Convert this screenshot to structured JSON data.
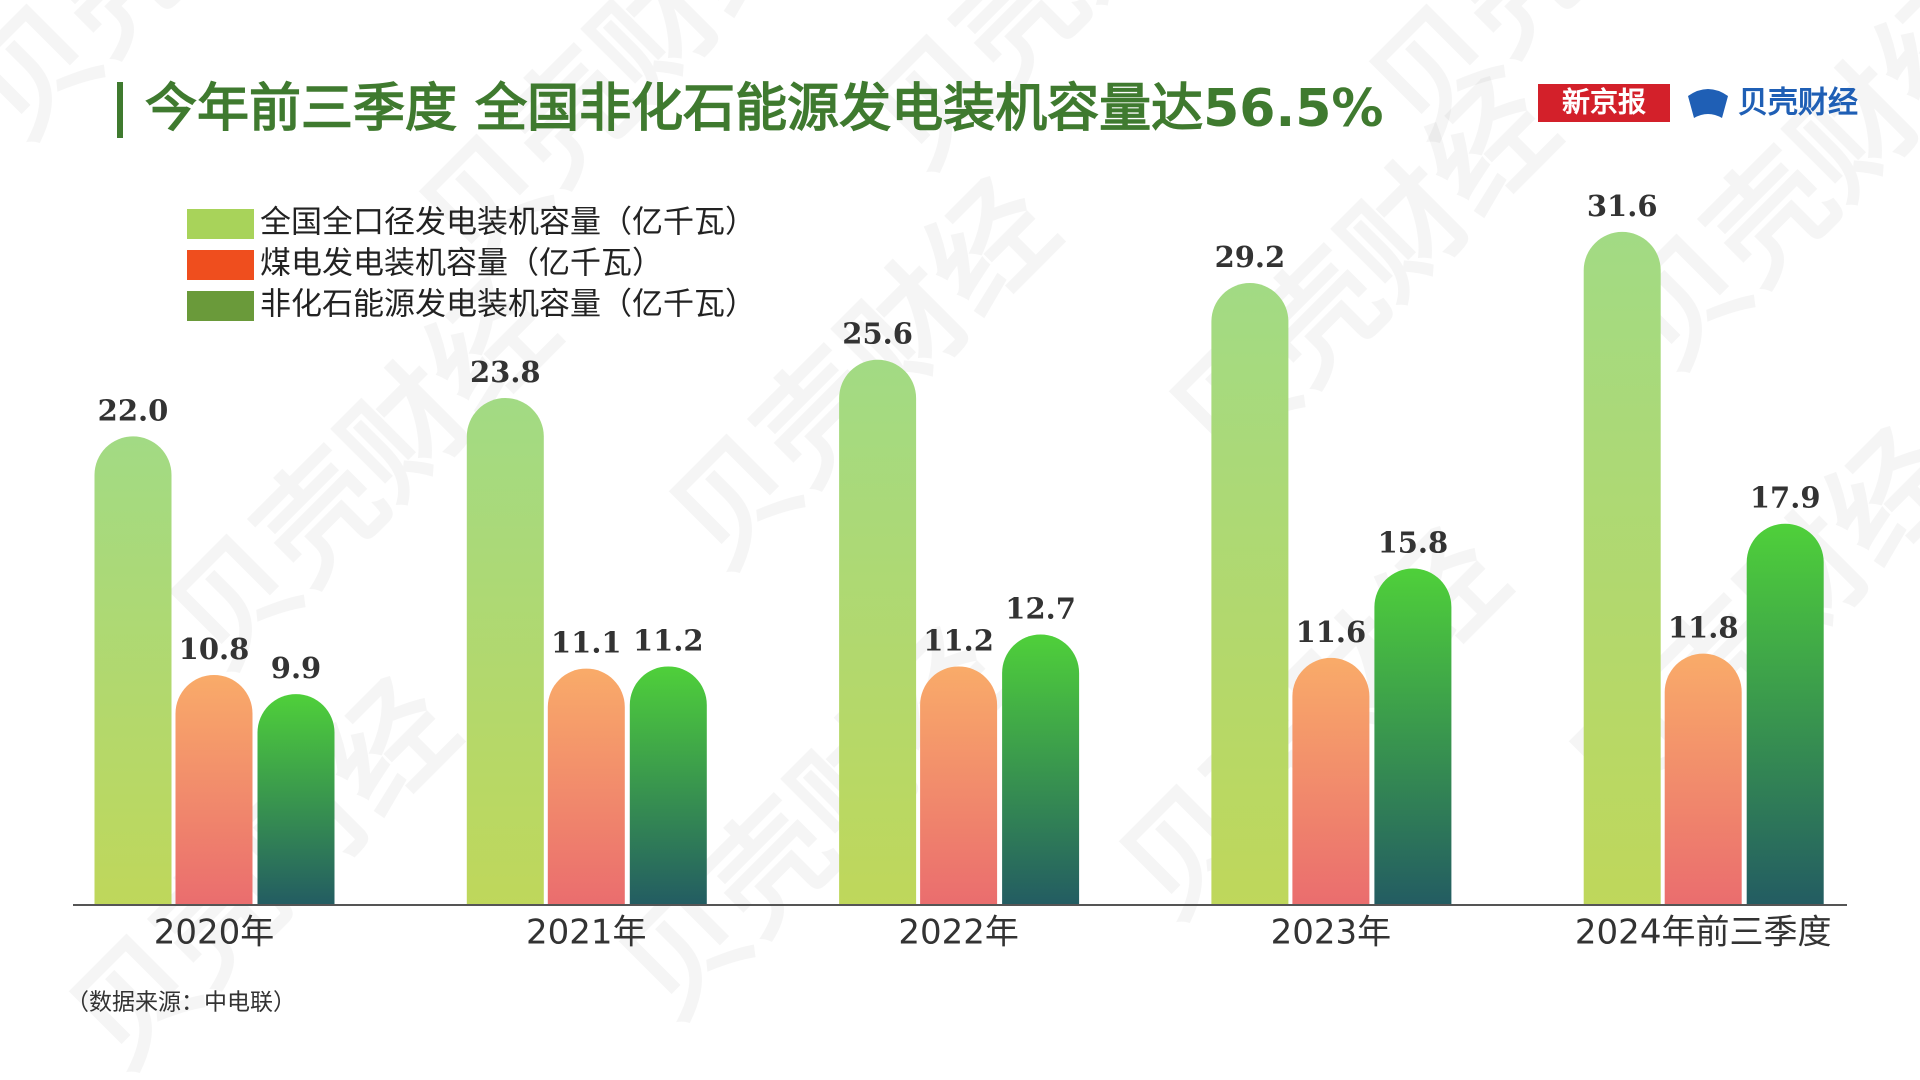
{
  "chart_data": {
    "type": "bar",
    "title": "今年前三季度 全国非化石能源发电装机容量达56.5%",
    "brands": [
      "新京报",
      "贝壳财经"
    ],
    "watermark": "贝壳财经",
    "categories": [
      "2020年",
      "2021年",
      "2022年",
      "2023年",
      "2024年前三季度"
    ],
    "series": [
      {
        "name": "全国全口径发电装机容量（亿千瓦）",
        "color": "#a8d35a",
        "values": [
          22.0,
          23.8,
          25.6,
          29.2,
          31.6
        ],
        "value_labels": [
          "22.0",
          "23.8",
          "25.6",
          "29.2",
          "31.6"
        ]
      },
      {
        "name": "煤电发电装机容量（亿千瓦）",
        "color": "#ef4e1e",
        "values": [
          10.8,
          11.1,
          11.2,
          11.6,
          11.8
        ]
      },
      {
        "name": "非化石能源发电装机容量（亿千瓦）",
        "color": "#6a9a3a",
        "values": [
          9.9,
          11.2,
          12.7,
          15.8,
          17.9
        ]
      }
    ],
    "source": "（数据来源：中电联）"
  }
}
